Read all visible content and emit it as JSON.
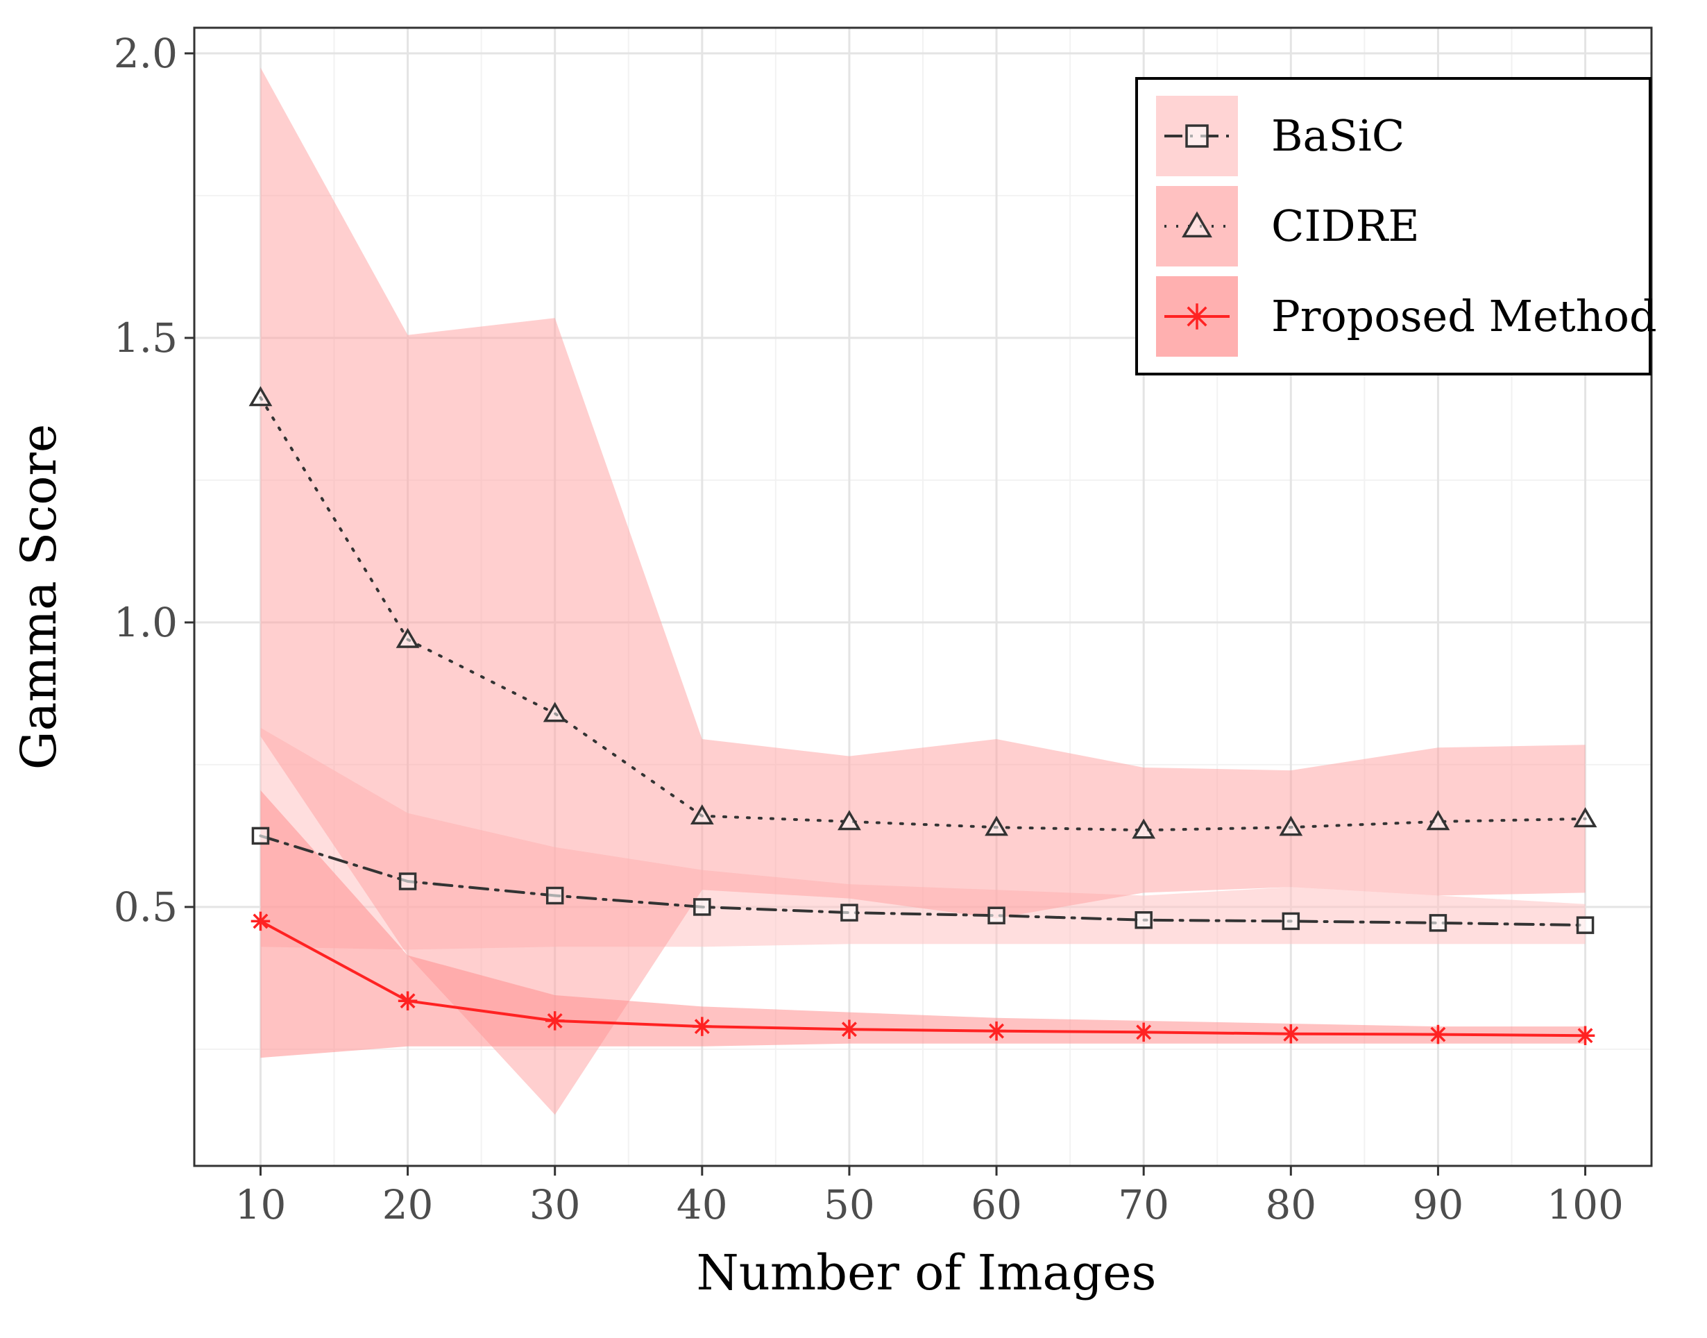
{
  "chart_data": {
    "type": "line",
    "title": "",
    "xlabel": "Number of Images",
    "ylabel": "Gamma Score",
    "xlim": [
      5.5,
      104.5
    ],
    "ylim": [
      0.045,
      2.045
    ],
    "xticks": [
      10,
      20,
      30,
      40,
      50,
      60,
      70,
      80,
      90,
      100
    ],
    "xtick_labels": [
      "10",
      "20",
      "30",
      "40",
      "50",
      "60",
      "70",
      "80",
      "90",
      "100"
    ],
    "yticks": [
      0.5,
      1.0,
      1.5,
      2.0
    ],
    "ytick_labels": [
      "0.5",
      "1.0",
      "1.5",
      "2.0"
    ],
    "grid": true,
    "legend_position": "top-right",
    "x": [
      10,
      20,
      30,
      40,
      50,
      60,
      70,
      80,
      90,
      100
    ],
    "series": [
      {
        "name": "BaSiC",
        "marker": "square",
        "line_style": "dashdot",
        "line_color": "#333333",
        "band_color": "#ffc2c2",
        "band_opacity": 0.55,
        "values": [
          0.625,
          0.545,
          0.52,
          0.5,
          0.49,
          0.485,
          0.477,
          0.475,
          0.472,
          0.468
        ],
        "lower": [
          0.43,
          0.425,
          0.43,
          0.43,
          0.435,
          0.435,
          0.435,
          0.435,
          0.435,
          0.435
        ],
        "upper": [
          0.815,
          0.665,
          0.605,
          0.565,
          0.54,
          0.53,
          0.52,
          0.535,
          0.52,
          0.505
        ]
      },
      {
        "name": "CIDRE",
        "marker": "triangle",
        "line_style": "dotted",
        "line_color": "#333333",
        "band_color": "#ffa0a0",
        "band_opacity": 0.5,
        "values": [
          1.395,
          0.97,
          0.84,
          0.66,
          0.65,
          0.64,
          0.635,
          0.64,
          0.65,
          0.655
        ],
        "lower": [
          0.8,
          0.415,
          0.135,
          0.53,
          0.515,
          0.48,
          0.525,
          0.535,
          0.52,
          0.525
        ],
        "upper": [
          1.975,
          1.505,
          1.535,
          0.795,
          0.765,
          0.795,
          0.745,
          0.74,
          0.78,
          0.785
        ]
      },
      {
        "name": "Proposed Method",
        "marker": "asterisk",
        "line_style": "solid",
        "line_color": "#ff2222",
        "band_color": "#ff8f8f",
        "band_opacity": 0.55,
        "values": [
          0.475,
          0.335,
          0.3,
          0.29,
          0.285,
          0.282,
          0.28,
          0.277,
          0.276,
          0.274
        ],
        "lower": [
          0.235,
          0.255,
          0.255,
          0.255,
          0.26,
          0.26,
          0.26,
          0.26,
          0.26,
          0.26
        ],
        "upper": [
          0.705,
          0.415,
          0.345,
          0.325,
          0.315,
          0.305,
          0.3,
          0.295,
          0.29,
          0.29
        ]
      }
    ]
  },
  "colors": {
    "panel_border": "#333333",
    "grid_major": "#e4e4e4",
    "grid_minor": "#f2f2f2",
    "legend_key_bg": "#ffd9d9"
  }
}
